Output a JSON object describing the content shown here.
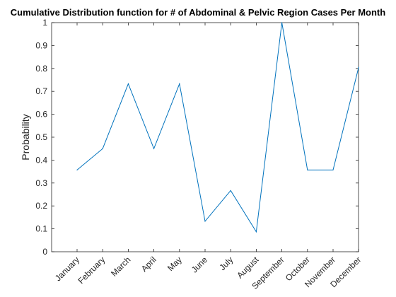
{
  "colors": {
    "line": "#0072BD",
    "axes": "#262626",
    "background": "#ffffff"
  },
  "chart_data": {
    "type": "line",
    "title": "Cumulative Distribution function for # of Abdominal & Pelvic Region Cases Per Month",
    "xlabel": "",
    "ylabel": "Probability",
    "categories": [
      "January",
      "February",
      "March",
      "April",
      "May",
      "June",
      "July",
      "August",
      "September",
      "October",
      "November",
      "December"
    ],
    "series": [
      {
        "values": [
          0.357,
          0.45,
          0.733,
          0.45,
          0.733,
          0.133,
          0.267,
          0.087,
          1.0,
          0.357,
          0.357,
          0.805
        ]
      }
    ],
    "ylim": [
      0,
      1
    ],
    "yticks": [
      0,
      0.1,
      0.2,
      0.3,
      0.4,
      0.5,
      0.6,
      0.7,
      0.8,
      0.9,
      1
    ],
    "ytick_labels": [
      "0",
      "0.1",
      "0.2",
      "0.3",
      "0.4",
      "0.5",
      "0.6",
      "0.7",
      "0.8",
      "0.9",
      "1"
    ],
    "grid": false,
    "legend": "none"
  }
}
